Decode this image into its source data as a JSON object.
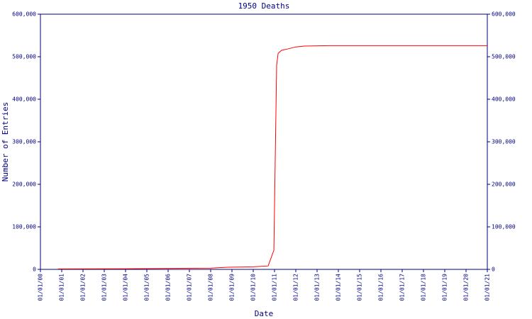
{
  "chart_data": {
    "type": "line",
    "title": "1950 Deaths",
    "xlabel": "Date",
    "ylabel": "Number of Entries",
    "x": [
      0.83,
      4,
      8,
      8.8,
      10,
      10.7,
      10.97,
      11.1,
      11.17,
      11.33,
      11.6,
      12,
      12.4,
      13.5,
      21
    ],
    "values": [
      1000,
      1500,
      3000,
      5000,
      6000,
      8000,
      45000,
      480000,
      508000,
      515000,
      518000,
      523000,
      525000,
      526000,
      526000
    ],
    "color": "#ff0000",
    "xlim": [
      0,
      21
    ],
    "xticks": [
      {
        "value": 0,
        "label": "01/01/00"
      },
      {
        "value": 1,
        "label": "01/01/01"
      },
      {
        "value": 2,
        "label": "01/01/02"
      },
      {
        "value": 3,
        "label": "01/01/03"
      },
      {
        "value": 4,
        "label": "01/01/04"
      },
      {
        "value": 5,
        "label": "01/01/05"
      },
      {
        "value": 6,
        "label": "01/01/06"
      },
      {
        "value": 7,
        "label": "01/01/07"
      },
      {
        "value": 8,
        "label": "01/01/08"
      },
      {
        "value": 9,
        "label": "01/01/09"
      },
      {
        "value": 10,
        "label": "01/01/10"
      },
      {
        "value": 11,
        "label": "01/01/11"
      },
      {
        "value": 12,
        "label": "01/01/12"
      },
      {
        "value": 13,
        "label": "01/01/13"
      },
      {
        "value": 14,
        "label": "01/01/14"
      },
      {
        "value": 15,
        "label": "01/01/15"
      },
      {
        "value": 16,
        "label": "01/01/16"
      },
      {
        "value": 17,
        "label": "01/01/17"
      },
      {
        "value": 18,
        "label": "01/01/18"
      },
      {
        "value": 19,
        "label": "01/01/19"
      },
      {
        "value": 20,
        "label": "01/01/20"
      },
      {
        "value": 21,
        "label": "01/01/21"
      }
    ],
    "ylim": [
      0,
      600000
    ],
    "yticks": [
      0,
      {
        "value": 100000,
        "label": "100,000"
      },
      {
        "value": 200000,
        "label": "200,000"
      },
      {
        "value": 300000,
        "label": "300,000"
      },
      {
        "value": 400000,
        "label": "400,000"
      },
      {
        "value": 500000,
        "label": "500,000"
      },
      {
        "value": 600000,
        "label": "600,000"
      }
    ],
    "y2lim": [
      0,
      600000
    ],
    "y2ticks": [
      0,
      {
        "value": 100000,
        "label": "100,000"
      },
      {
        "value": 200000,
        "label": "200,000"
      },
      {
        "value": 300000,
        "label": "300,000"
      },
      {
        "value": 400000,
        "label": "400,000"
      },
      {
        "value": 500000,
        "label": "500,000"
      },
      {
        "value": 600000,
        "label": "600,000"
      }
    ]
  }
}
